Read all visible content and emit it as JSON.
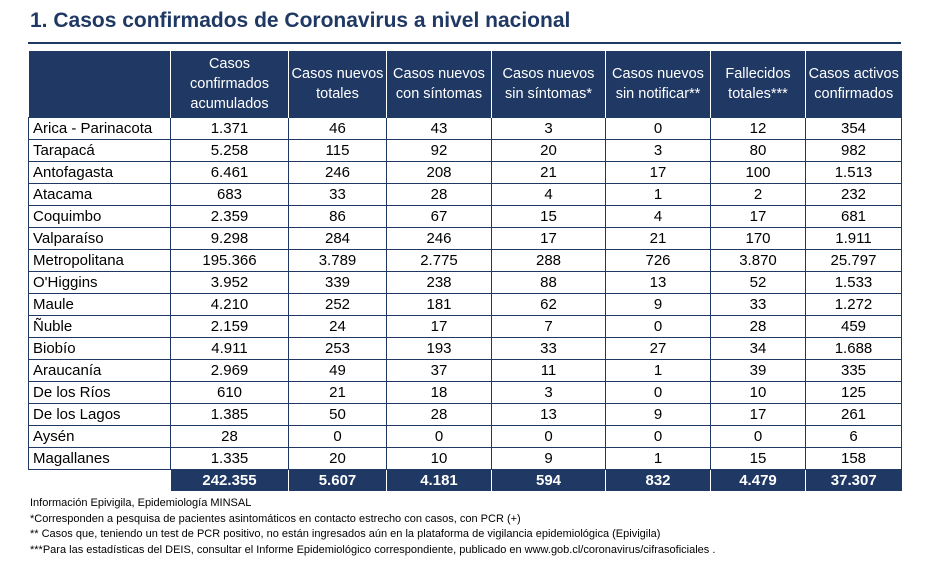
{
  "title": "1. Casos confirmados de Coronavirus a nivel nacional",
  "colors": {
    "header_bg": "#1F3864",
    "title": "#1F3864"
  },
  "table": {
    "headers": [
      "",
      "Casos confirmados acumulados",
      "Casos nuevos totales",
      "Casos nuevos con síntomas",
      "Casos nuevos sin síntomas*",
      "Casos nuevos sin notificar**",
      "Fallecidos totales***",
      "Casos activos confirmados"
    ],
    "rows": [
      [
        "Arica - Parinacota",
        "1.371",
        "46",
        "43",
        "3",
        "0",
        "12",
        "354"
      ],
      [
        "Tarapacá",
        "5.258",
        "115",
        "92",
        "20",
        "3",
        "80",
        "982"
      ],
      [
        "Antofagasta",
        "6.461",
        "246",
        "208",
        "21",
        "17",
        "100",
        "1.513"
      ],
      [
        "Atacama",
        "683",
        "33",
        "28",
        "4",
        "1",
        "2",
        "232"
      ],
      [
        "Coquimbo",
        "2.359",
        "86",
        "67",
        "15",
        "4",
        "17",
        "681"
      ],
      [
        "Valparaíso",
        "9.298",
        "284",
        "246",
        "17",
        "21",
        "170",
        "1.911"
      ],
      [
        "Metropolitana",
        "195.366",
        "3.789",
        "2.775",
        "288",
        "726",
        "3.870",
        "25.797"
      ],
      [
        "O'Higgins",
        "3.952",
        "339",
        "238",
        "88",
        "13",
        "52",
        "1.533"
      ],
      [
        "Maule",
        "4.210",
        "252",
        "181",
        "62",
        "9",
        "33",
        "1.272"
      ],
      [
        "Ñuble",
        "2.159",
        "24",
        "17",
        "7",
        "0",
        "28",
        "459"
      ],
      [
        "Biobío",
        "4.911",
        "253",
        "193",
        "33",
        "27",
        "34",
        "1.688"
      ],
      [
        "Araucanía",
        "2.969",
        "49",
        "37",
        "11",
        "1",
        "39",
        "335"
      ],
      [
        "De los Ríos",
        "610",
        "21",
        "18",
        "3",
        "0",
        "10",
        "125"
      ],
      [
        "De los Lagos",
        "1.385",
        "50",
        "28",
        "13",
        "9",
        "17",
        "261"
      ],
      [
        "Aysén",
        "28",
        "0",
        "0",
        "0",
        "0",
        "0",
        "6"
      ],
      [
        "Magallanes",
        "1.335",
        "20",
        "10",
        "9",
        "1",
        "15",
        "158"
      ]
    ],
    "totals": [
      "",
      "242.355",
      "5.607",
      "4.181",
      "594",
      "832",
      "4.479",
      "37.307"
    ]
  },
  "footnotes": [
    "Información Epivigila, Epidemiología MINSAL",
    "*Corresponden a pesquisa de pacientes asintomáticos en contacto estrecho con casos, con PCR (+)",
    "** Casos que, teniendo un test de PCR positivo, no están ingresados aún en la plataforma de vigilancia epidemiológica (Epivigila)",
    "***Para las estadísticas del DEIS, consultar el Informe Epidemiológico correspondiente, publicado en www.gob.cl/coronavirus/cifrasoficiales ."
  ]
}
